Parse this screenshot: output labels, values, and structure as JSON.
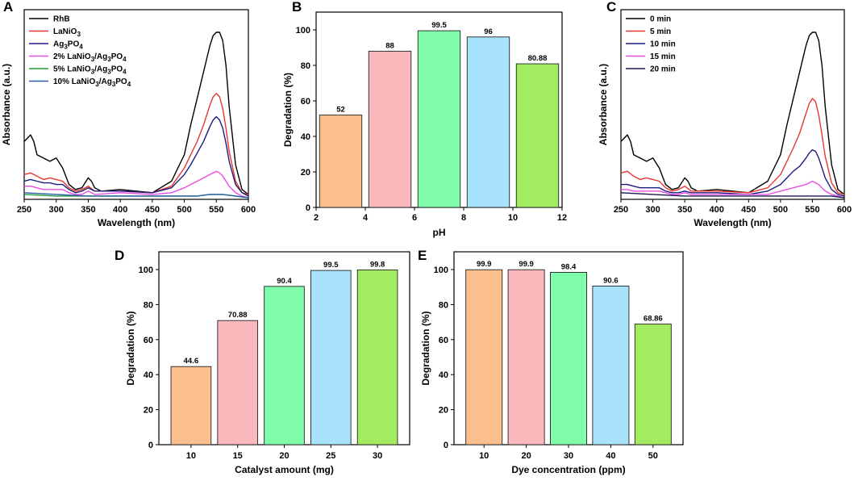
{
  "chart_data": [
    {
      "id": "A",
      "type": "line",
      "panel_label": "A",
      "xlabel": "Wavelength (nm)",
      "ylabel": "Absorbance (a.u.)",
      "xlim": [
        250,
        600
      ],
      "xticks": [
        "250",
        "300",
        "350",
        "400",
        "450",
        "500",
        "550",
        "600"
      ],
      "ylim": [
        0,
        1
      ],
      "legend_position": "top-left",
      "series": [
        {
          "name": "RhB",
          "color": "#000000",
          "x": [
            250,
            255,
            260,
            265,
            270,
            280,
            290,
            300,
            310,
            320,
            330,
            340,
            350,
            355,
            360,
            370,
            400,
            450,
            480,
            500,
            510,
            520,
            530,
            540,
            545,
            550,
            555,
            560,
            565,
            570,
            580,
            590,
            600
          ],
          "y": [
            0.34,
            0.36,
            0.38,
            0.34,
            0.26,
            0.24,
            0.22,
            0.24,
            0.18,
            0.08,
            0.05,
            0.06,
            0.12,
            0.1,
            0.06,
            0.04,
            0.05,
            0.03,
            0.1,
            0.26,
            0.44,
            0.6,
            0.76,
            0.92,
            0.98,
            1.0,
            1.0,
            0.95,
            0.8,
            0.55,
            0.2,
            0.05,
            0.02
          ]
        },
        {
          "name": "LaNiO3",
          "color": "#e8372e",
          "x": [
            250,
            260,
            270,
            280,
            290,
            300,
            310,
            320,
            330,
            340,
            350,
            360,
            400,
            450,
            480,
            500,
            510,
            520,
            530,
            540,
            545,
            550,
            555,
            560,
            565,
            570,
            580,
            590,
            600
          ],
          "y": [
            0.14,
            0.15,
            0.13,
            0.11,
            0.12,
            0.11,
            0.1,
            0.06,
            0.04,
            0.05,
            0.07,
            0.04,
            0.04,
            0.03,
            0.07,
            0.18,
            0.26,
            0.34,
            0.44,
            0.56,
            0.61,
            0.63,
            0.61,
            0.54,
            0.42,
            0.28,
            0.1,
            0.03,
            0.02
          ]
        },
        {
          "name": "Ag3PO4",
          "color": "#1c1c80",
          "x": [
            250,
            260,
            270,
            280,
            290,
            300,
            310,
            320,
            330,
            340,
            350,
            360,
            400,
            450,
            480,
            500,
            510,
            520,
            530,
            540,
            545,
            550,
            555,
            560,
            565,
            570,
            580,
            590,
            600
          ],
          "y": [
            0.1,
            0.11,
            0.1,
            0.09,
            0.09,
            0.08,
            0.08,
            0.05,
            0.03,
            0.04,
            0.06,
            0.04,
            0.04,
            0.03,
            0.06,
            0.14,
            0.2,
            0.27,
            0.34,
            0.43,
            0.47,
            0.49,
            0.47,
            0.42,
            0.33,
            0.22,
            0.08,
            0.03,
            0.01
          ]
        },
        {
          "name": "2% LaNiO3/Ag3PO4",
          "color": "#e84ee0",
          "x": [
            250,
            260,
            270,
            280,
            290,
            300,
            310,
            320,
            330,
            340,
            350,
            360,
            400,
            450,
            480,
            500,
            510,
            520,
            530,
            540,
            545,
            550,
            555,
            560,
            565,
            570,
            580,
            590,
            600
          ],
          "y": [
            0.07,
            0.07,
            0.06,
            0.05,
            0.05,
            0.05,
            0.05,
            0.03,
            0.02,
            0.02,
            0.04,
            0.02,
            0.03,
            0.02,
            0.03,
            0.06,
            0.08,
            0.1,
            0.12,
            0.14,
            0.15,
            0.16,
            0.15,
            0.13,
            0.1,
            0.07,
            0.03,
            0.01,
            0.0
          ]
        },
        {
          "name": "5% LaNiO3/Ag3PO4",
          "color": "#1a9e3c",
          "x": [
            250,
            300,
            350,
            400,
            450,
            500,
            520,
            540,
            550,
            560,
            580,
            600
          ],
          "y": [
            0.02,
            0.01,
            0.01,
            0.01,
            0.01,
            0.01,
            0.01,
            0.02,
            0.02,
            0.02,
            0.01,
            0.0
          ]
        },
        {
          "name": "10% LaNiO3/Ag3PO4",
          "color": "#2a5ca8",
          "x": [
            250,
            300,
            350,
            400,
            450,
            500,
            520,
            540,
            550,
            560,
            580,
            600
          ],
          "y": [
            0.03,
            0.02,
            0.01,
            0.01,
            0.01,
            0.01,
            0.01,
            0.02,
            0.02,
            0.02,
            0.01,
            0.0
          ]
        }
      ]
    },
    {
      "id": "B",
      "type": "bar",
      "panel_label": "B",
      "xlabel": "pH",
      "ylabel": "Degradation (%)",
      "xlim": [
        2,
        12
      ],
      "ylim": [
        0,
        100
      ],
      "xticks": [
        "2",
        "4",
        "6",
        "8",
        "10",
        "12"
      ],
      "yticks": [
        "0",
        "20",
        "40",
        "60",
        "80",
        "100"
      ],
      "x": [
        3,
        5,
        7,
        9,
        11
      ],
      "values": [
        52,
        88,
        99.5,
        96,
        80.88
      ],
      "labels": [
        "52",
        "88",
        "99.5",
        "96",
        "80.88"
      ],
      "colors": [
        "#fbc08e",
        "#fbb9bd",
        "#80fdaa",
        "#a8e3fb",
        "#a3ec62"
      ]
    },
    {
      "id": "C",
      "type": "line",
      "panel_label": "C",
      "xlabel": "Wavelength (nm)",
      "ylabel": "Absorbance (a.u.)",
      "xlim": [
        250,
        600
      ],
      "xticks": [
        "250",
        "300",
        "350",
        "400",
        "450",
        "500",
        "550",
        "600"
      ],
      "ylim": [
        0,
        1
      ],
      "legend_position": "top-left",
      "series": [
        {
          "name": "0 min",
          "color": "#000000",
          "x": [
            250,
            255,
            260,
            265,
            270,
            280,
            290,
            300,
            310,
            320,
            330,
            340,
            350,
            355,
            360,
            370,
            400,
            450,
            480,
            500,
            510,
            520,
            530,
            540,
            545,
            550,
            555,
            560,
            565,
            570,
            580,
            590,
            600
          ],
          "y": [
            0.34,
            0.36,
            0.38,
            0.34,
            0.26,
            0.24,
            0.22,
            0.24,
            0.18,
            0.08,
            0.05,
            0.06,
            0.12,
            0.1,
            0.06,
            0.04,
            0.05,
            0.03,
            0.1,
            0.26,
            0.44,
            0.6,
            0.76,
            0.92,
            0.98,
            1.0,
            1.0,
            0.95,
            0.8,
            0.55,
            0.2,
            0.05,
            0.02
          ]
        },
        {
          "name": "5 min",
          "color": "#e8372e",
          "x": [
            250,
            260,
            270,
            280,
            290,
            300,
            310,
            320,
            330,
            340,
            350,
            360,
            400,
            450,
            480,
            500,
            510,
            520,
            530,
            540,
            545,
            550,
            555,
            560,
            565,
            570,
            580,
            590,
            600
          ],
          "y": [
            0.15,
            0.16,
            0.13,
            0.11,
            0.12,
            0.11,
            0.1,
            0.06,
            0.04,
            0.05,
            0.07,
            0.04,
            0.04,
            0.03,
            0.06,
            0.14,
            0.22,
            0.3,
            0.39,
            0.51,
            0.57,
            0.6,
            0.58,
            0.5,
            0.38,
            0.25,
            0.09,
            0.03,
            0.02
          ]
        },
        {
          "name": "10 min",
          "color": "#1c1c80",
          "x": [
            250,
            260,
            270,
            280,
            290,
            300,
            310,
            320,
            330,
            340,
            350,
            360,
            400,
            450,
            480,
            500,
            510,
            520,
            530,
            540,
            545,
            550,
            555,
            560,
            565,
            570,
            580,
            590,
            600
          ],
          "y": [
            0.08,
            0.08,
            0.07,
            0.06,
            0.06,
            0.06,
            0.06,
            0.04,
            0.03,
            0.03,
            0.04,
            0.03,
            0.03,
            0.02,
            0.04,
            0.08,
            0.12,
            0.16,
            0.19,
            0.24,
            0.27,
            0.29,
            0.28,
            0.24,
            0.18,
            0.12,
            0.05,
            0.02,
            0.01
          ]
        },
        {
          "name": "15 min",
          "color": "#e84ee0",
          "x": [
            250,
            260,
            270,
            280,
            290,
            300,
            310,
            320,
            330,
            340,
            350,
            360,
            400,
            450,
            480,
            500,
            510,
            520,
            530,
            540,
            545,
            550,
            555,
            560,
            565,
            570,
            580,
            590,
            600
          ],
          "y": [
            0.05,
            0.05,
            0.04,
            0.04,
            0.04,
            0.04,
            0.04,
            0.03,
            0.02,
            0.02,
            0.03,
            0.02,
            0.02,
            0.02,
            0.02,
            0.04,
            0.05,
            0.06,
            0.07,
            0.08,
            0.09,
            0.1,
            0.09,
            0.08,
            0.06,
            0.04,
            0.02,
            0.01,
            0.0
          ]
        },
        {
          "name": "20 min",
          "color": "#1a1a55",
          "x": [
            250,
            300,
            350,
            400,
            450,
            500,
            520,
            540,
            550,
            560,
            580,
            600
          ],
          "y": [
            0.03,
            0.02,
            0.01,
            0.01,
            0.01,
            0.01,
            0.01,
            0.01,
            0.01,
            0.01,
            0.01,
            0.0
          ]
        }
      ]
    },
    {
      "id": "D",
      "type": "bar",
      "panel_label": "D",
      "xlabel": "Catalyst amount (mg)",
      "ylabel": "Degradation (%)",
      "ylim": [
        0,
        100
      ],
      "yticks": [
        "0",
        "20",
        "40",
        "60",
        "80",
        "100"
      ],
      "categories": [
        "10",
        "15",
        "20",
        "25",
        "30"
      ],
      "values": [
        44.6,
        70.88,
        90.4,
        99.5,
        99.8
      ],
      "labels": [
        "44.6",
        "70.88",
        "90.4",
        "99.5",
        "99.8"
      ],
      "colors": [
        "#fbc08e",
        "#fbb9bd",
        "#80fdaa",
        "#a8e3fb",
        "#a3ec62"
      ]
    },
    {
      "id": "E",
      "type": "bar",
      "panel_label": "E",
      "xlabel": "Dye concentration (ppm)",
      "ylabel": "Degradation (%)",
      "ylim": [
        0,
        100
      ],
      "yticks": [
        "0",
        "20",
        "40",
        "60",
        "80",
        "100"
      ],
      "categories": [
        "10",
        "20",
        "30",
        "40",
        "50"
      ],
      "values": [
        99.9,
        99.9,
        98.4,
        90.6,
        68.86
      ],
      "labels": [
        "99.9",
        "99.9",
        "98.4",
        "90.6",
        "68.86"
      ],
      "colors": [
        "#fbc08e",
        "#fbb9bd",
        "#80fdaa",
        "#a8e3fb",
        "#a3ec62"
      ]
    }
  ]
}
